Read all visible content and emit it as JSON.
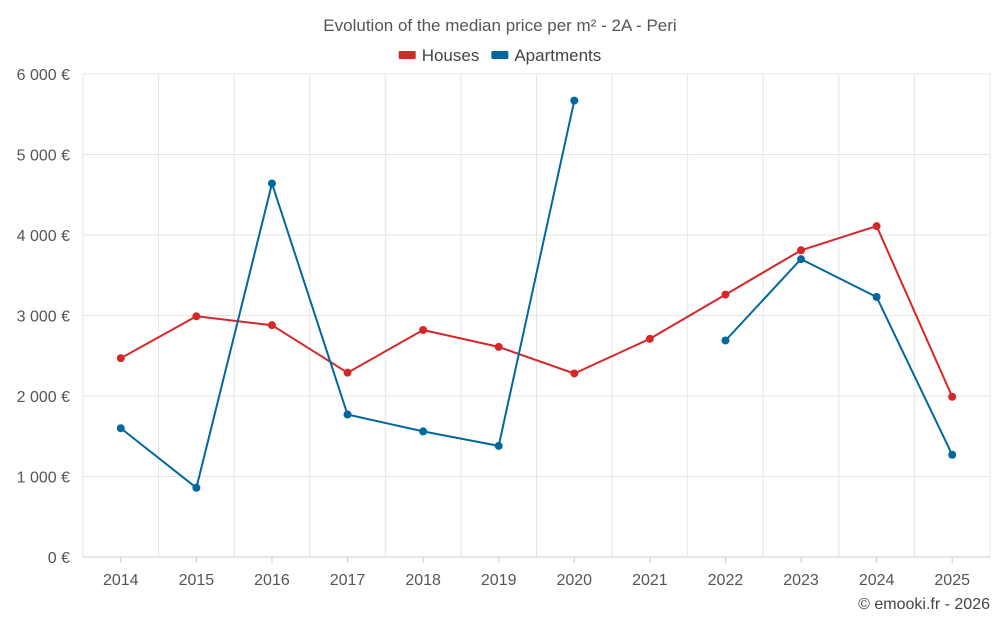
{
  "chart_data": {
    "type": "line",
    "title": "Evolution of the median price per m² - 2A - Peri",
    "categories": [
      "2014",
      "2015",
      "2016",
      "2017",
      "2018",
      "2019",
      "2020",
      "2021",
      "2022",
      "2023",
      "2024",
      "2025"
    ],
    "series": [
      {
        "name": "Houses",
        "color": "#d62728",
        "values": [
          2470,
          2990,
          2880,
          2290,
          2820,
          2610,
          2280,
          2710,
          3260,
          3810,
          4110,
          1990
        ]
      },
      {
        "name": "Apartments",
        "color": "#00689d",
        "values": [
          1600,
          860,
          4640,
          1770,
          1560,
          1380,
          5670,
          null,
          2690,
          3700,
          3230,
          1270
        ]
      }
    ],
    "ylim": [
      0,
      6000
    ],
    "yticks": [
      0,
      1000,
      2000,
      3000,
      4000,
      5000,
      6000
    ],
    "ytick_labels": [
      "0 €",
      "1 000 €",
      "2 000 €",
      "3 000 €",
      "4 000 €",
      "5 000 €",
      "6 000 €"
    ],
    "xlabel": "",
    "ylabel": "",
    "legend_position": "top-center",
    "grid": true
  },
  "credit": "© emooki.fr - 2026"
}
